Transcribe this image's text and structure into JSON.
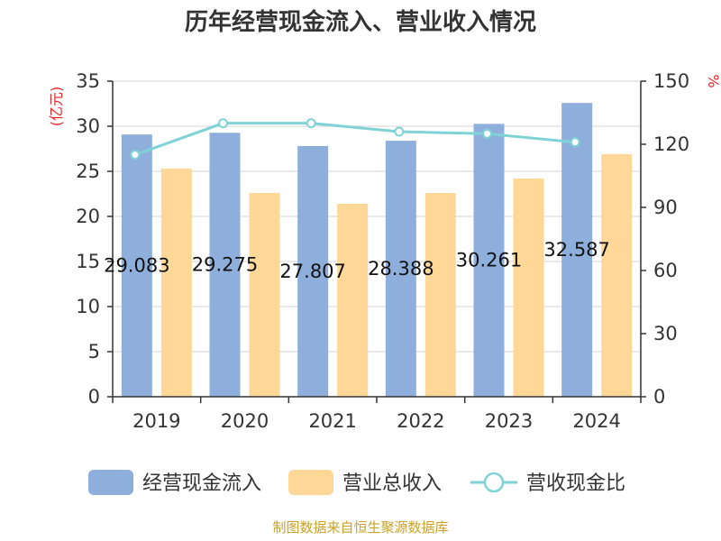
{
  "title": "历年经营现金流入、营业收入情况",
  "source": "制图数据来自恒生聚源数据库",
  "chart_data": {
    "type": "bar",
    "categories": [
      "2019",
      "2020",
      "2021",
      "2022",
      "2023",
      "2024"
    ],
    "series": [
      {
        "name": "经营现金流入",
        "type": "bar",
        "axis": "left",
        "color": "#8eaedc",
        "values": [
          29.083,
          29.275,
          27.807,
          28.388,
          30.261,
          32.587
        ],
        "labels": [
          "29.083",
          "29.275",
          "27.807",
          "28.388",
          "30.261",
          "32.587"
        ]
      },
      {
        "name": "营业总收入",
        "type": "bar",
        "axis": "left",
        "color": "#ffd898",
        "values": [
          25.3,
          22.6,
          21.4,
          22.6,
          24.2,
          26.9
        ]
      },
      {
        "name": "营收现金比",
        "type": "line",
        "axis": "right",
        "color": "#7fd3d6",
        "values": [
          115,
          130,
          130,
          126,
          125,
          121
        ]
      }
    ],
    "y_left": {
      "unit": "(亿元)",
      "min": 0,
      "max": 35,
      "ticks": [
        0,
        5,
        10,
        15,
        20,
        25,
        30,
        35
      ]
    },
    "y_right": {
      "unit": "%",
      "min": 0,
      "max": 150,
      "ticks": [
        0,
        30,
        60,
        90,
        120,
        150
      ]
    },
    "grid": true,
    "legend": "bottom"
  }
}
